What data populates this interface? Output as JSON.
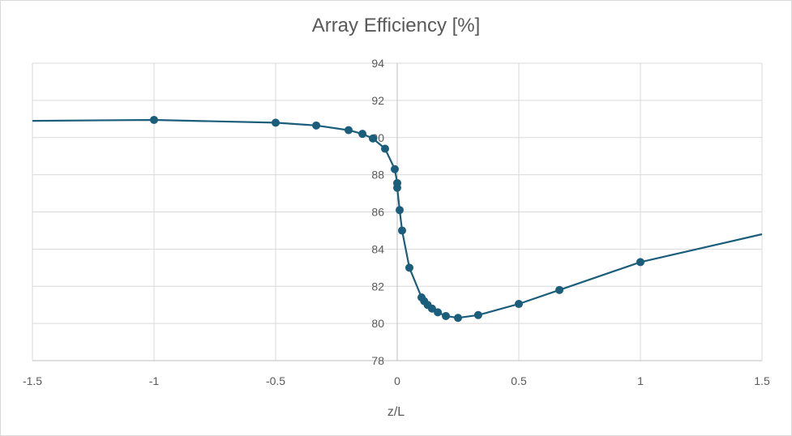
{
  "chart_data": {
    "type": "scatter",
    "title": "Array Efficiency [%]",
    "xlabel": "z/L",
    "ylabel": "",
    "xlim": [
      -1.5,
      1.5
    ],
    "ylim": [
      78,
      94
    ],
    "x_ticks": [
      -1.5,
      -1,
      -0.5,
      0,
      0.5,
      1,
      1.5
    ],
    "x_tick_labels": [
      "-1.5",
      "-1",
      "-0.5",
      "0",
      "0.5",
      "1",
      "1.5"
    ],
    "y_ticks": [
      78,
      80,
      82,
      84,
      86,
      88,
      90,
      92,
      94
    ],
    "y_tick_labels": [
      "78",
      "80",
      "82",
      "84",
      "86",
      "88",
      "90",
      "92",
      "94"
    ],
    "grid": true,
    "legend": "none",
    "line_color": "#1b5e7b",
    "series": [
      {
        "markers": true,
        "points": [
          {
            "x": -1.0,
            "y": 90.95
          },
          {
            "x": -0.5,
            "y": 90.8
          },
          {
            "x": -0.333,
            "y": 90.65
          },
          {
            "x": -0.2,
            "y": 90.4
          },
          {
            "x": -0.143,
            "y": 90.2
          },
          {
            "x": -0.1,
            "y": 89.95
          },
          {
            "x": -0.05,
            "y": 89.4
          },
          {
            "x": -0.01,
            "y": 88.3
          },
          {
            "x": 0.0,
            "y": 87.55
          },
          {
            "x": 0.0,
            "y": 87.3
          },
          {
            "x": 0.01,
            "y": 86.1
          },
          {
            "x": 0.02,
            "y": 85.0
          },
          {
            "x": 0.05,
            "y": 83.0
          },
          {
            "x": 0.1,
            "y": 81.4
          },
          {
            "x": 0.111,
            "y": 81.2
          },
          {
            "x": 0.125,
            "y": 81.0
          },
          {
            "x": 0.143,
            "y": 80.8
          },
          {
            "x": 0.167,
            "y": 80.6
          },
          {
            "x": 0.2,
            "y": 80.4
          },
          {
            "x": 0.25,
            "y": 80.3
          },
          {
            "x": 0.333,
            "y": 80.45
          },
          {
            "x": 0.5,
            "y": 81.05
          },
          {
            "x": 0.667,
            "y": 81.8
          },
          {
            "x": 1.0,
            "y": 83.3
          }
        ],
        "line_start": {
          "x": -1.5,
          "y": 90.9
        },
        "line_end": {
          "x": 1.5,
          "y": 84.8
        }
      }
    ]
  }
}
